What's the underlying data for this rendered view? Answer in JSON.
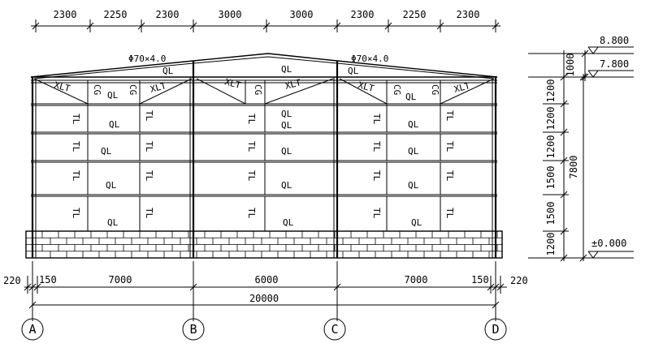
{
  "top_dimensions": [
    "2300",
    "2250",
    "2300",
    "3000",
    "3000",
    "2300",
    "2250",
    "2300"
  ],
  "bottom_dimensions": {
    "left_offset": "220",
    "left_small": "150",
    "span_ab": "7000",
    "span_bc": "6000",
    "span_cd": "7000",
    "right_small": "150",
    "right_offset": "220",
    "total": "20000"
  },
  "axes": [
    "A",
    "B",
    "C",
    "D"
  ],
  "elevations": {
    "top": "8.800",
    "eave": "7.800",
    "ground": "±0.000"
  },
  "right_dimensions": {
    "ridge_height": "1000",
    "segments": [
      "1200",
      "1200",
      "1200",
      "1500",
      "1500",
      "1200"
    ],
    "total": "7800"
  },
  "roof_brace_labels": {
    "left": "Φ70×4.0",
    "right": "Φ70×4.0"
  },
  "member_labels": {
    "roof_purlin": "QL",
    "wall_purlin": "QL",
    "tie_bar": "TL",
    "brace": "CG",
    "sway_left": "XLT",
    "sway_right": "XLT"
  }
}
